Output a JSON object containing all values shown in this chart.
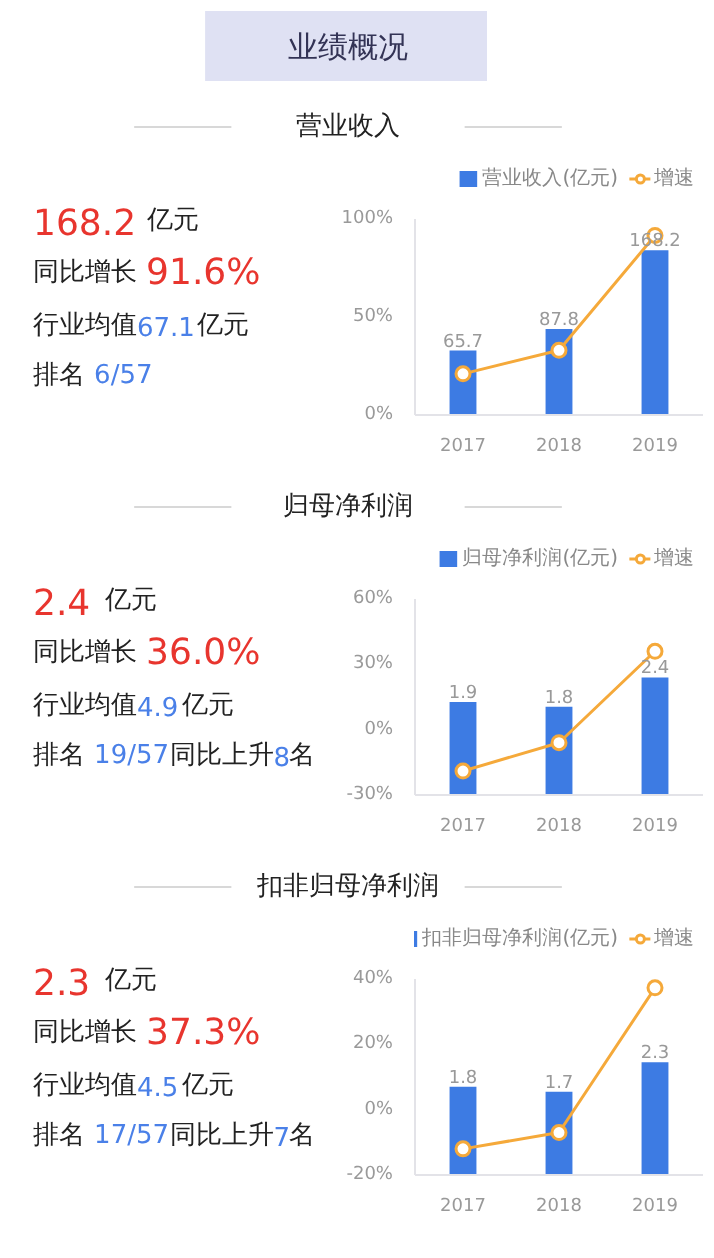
{
  "chart_data": [
    {
      "type": "other",
      "title": "业绩概况"
    },
    {
      "type": "bar",
      "title": "营业收入",
      "annotations": [
        "168.2 亿元",
        "同比增长 91.6%",
        "行业均值67.1亿元",
        "排名 6/57"
      ],
      "categories": [
        "2017",
        "2018",
        "2019"
      ],
      "series": [
        {
          "name": "营业收入(亿元)",
          "type": "bar",
          "color": "#3d7be3",
          "axis": "y2",
          "values": [
            65.7,
            87.8,
            168.2
          ],
          "value_labels": [
            "65.7",
            "87.8",
            "168.2"
          ]
        },
        {
          "name": "增速",
          "type": "line",
          "color": "#f5a93a",
          "marker": "circle",
          "values": [
            21,
            33,
            91.6
          ]
        }
      ],
      "ylim": [
        0,
        100
      ],
      "yticks": [
        {
          "value": 0,
          "label": "0%"
        },
        {
          "value": 50,
          "label": "50%"
        },
        {
          "value": 100,
          "label": "100%"
        }
      ],
      "y2lim": [
        0,
        200
      ],
      "legend": "top",
      "grid": false
    },
    {
      "type": "bar",
      "title": "归母净利润",
      "annotations": [
        "2.4 亿元",
        "同比增长 36.0%",
        "行业均值4.9亿元",
        "排名 19/57同比上升8名"
      ],
      "categories": [
        "2017",
        "2018",
        "2019"
      ],
      "series": [
        {
          "name": "归母净利润(亿元)",
          "type": "bar",
          "color": "#3d7be3",
          "axis": "y2",
          "values": [
            1.9,
            1.8,
            2.4
          ],
          "value_labels": [
            "1.9",
            "1.8",
            "2.4"
          ]
        },
        {
          "name": "增速",
          "type": "line",
          "color": "#f5a93a",
          "marker": "circle",
          "values": [
            -19,
            -6,
            36.0
          ]
        }
      ],
      "ylim": [
        -30,
        60
      ],
      "yticks": [
        {
          "value": -30,
          "label": "-30%"
        },
        {
          "value": 0,
          "label": "0%"
        },
        {
          "value": 30,
          "label": "30%"
        },
        {
          "value": 60,
          "label": "60%"
        }
      ],
      "y2lim": [
        0,
        4
      ],
      "legend": "top",
      "grid": false
    },
    {
      "type": "bar",
      "title": "扣非归母净利润",
      "annotations": [
        "2.3 亿元",
        "同比增长 37.3%",
        "行业均值4.5亿元",
        "排名 17/57同比上升7名"
      ],
      "categories": [
        "2017",
        "2018",
        "2019"
      ],
      "series": [
        {
          "name": "扣非归母净利润(亿元)",
          "type": "bar",
          "color": "#3d7be3",
          "axis": "y2",
          "values": [
            1.8,
            1.7,
            2.3
          ],
          "value_labels": [
            "1.8",
            "1.7",
            "2.3"
          ]
        },
        {
          "name": "增速",
          "type": "line",
          "color": "#f5a93a",
          "marker": "circle",
          "values": [
            -12,
            -7,
            37.3
          ]
        }
      ],
      "ylim": [
        -20,
        40
      ],
      "yticks": [
        {
          "value": -20,
          "label": "-20%"
        },
        {
          "value": 0,
          "label": "0%"
        },
        {
          "value": 20,
          "label": "20%"
        },
        {
          "value": 40,
          "label": "40%"
        }
      ],
      "y2lim": [
        0,
        4
      ],
      "legend": "top",
      "grid": false
    }
  ]
}
